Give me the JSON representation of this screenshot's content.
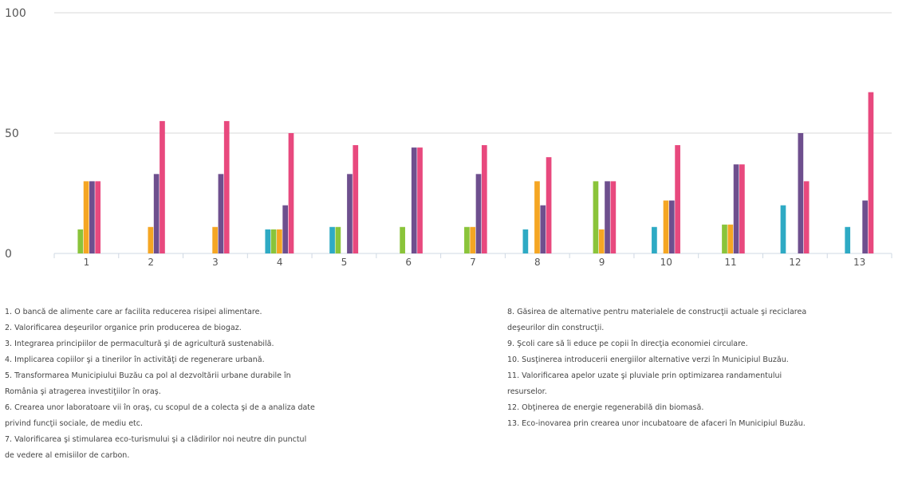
{
  "chart_data": {
    "type": "bar",
    "title": "",
    "xlabel": "",
    "ylabel": "",
    "ylim": [
      0,
      100
    ],
    "yticks": [
      "0",
      "50",
      "100"
    ],
    "grid": true,
    "categories": [
      "1",
      "2",
      "3",
      "4",
      "5",
      "6",
      "7",
      "8",
      "9",
      "10",
      "11",
      "12",
      "13"
    ],
    "series": [
      {
        "color": "#2eaac4",
        "values": [
          0,
          0,
          0,
          10,
          11,
          0,
          0,
          10,
          0,
          11,
          0,
          20,
          11
        ]
      },
      {
        "color": "#8ac43a",
        "values": [
          10,
          0,
          0,
          10,
          11,
          11,
          11,
          0,
          30,
          0,
          12,
          0,
          0
        ]
      },
      {
        "color": "#f5a623",
        "values": [
          30,
          11,
          11,
          10,
          0,
          0,
          11,
          30,
          10,
          22,
          12,
          0,
          0
        ]
      },
      {
        "color": "#6e4f8e",
        "values": [
          30,
          33,
          33,
          20,
          33,
          44,
          33,
          20,
          30,
          22,
          37,
          50,
          22
        ]
      },
      {
        "color": "#e8497e",
        "values": [
          30,
          55,
          55,
          50,
          45,
          44,
          45,
          40,
          30,
          45,
          37,
          30,
          67
        ]
      }
    ]
  },
  "legend": {
    "left": [
      "1. O bancă de alimente care ar facilita reducerea risipei alimentare.",
      "2. Valorificarea deşeurilor organice prin producerea de biogaz.",
      "3. Integrarea principiilor de permacultură şi de agricultură sustenabilă.",
      "4. Implicarea copiilor şi a tinerilor în activităţi de regenerare urbană.",
      "5. Transformarea Municipiului Buzău ca pol al dezvoltării urbane durabile în",
      "România şi atragerea investiţiilor în oraş.",
      "6. Crearea unor laboratoare vii în oraş, cu scopul de a colecta şi de a analiza date",
      "privind funcţii sociale, de mediu etc.",
      "7. Valorificarea şi stimularea eco-turismului şi a clădirilor noi neutre din punctul",
      "de vedere al emisiilor de carbon."
    ],
    "right": [
      "8. Găsirea de alternative pentru materialele de construcţii actuale şi reciclarea",
      "deşeurilor din construcţii.",
      "9. Şcoli care să îi educe pe copii în direcţia economiei circulare.",
      "10. Susţinerea introducerii energiilor alternative verzi în Municipiul Buzău.",
      "11. Valorificarea apelor uzate şi pluviale prin optimizarea randamentului",
      "resurselor.",
      "12. Obţinerea de energie regenerabilă din biomasă.",
      "13. Eco-inovarea prin crearea unor incubatoare de afaceri în Municipiul Buzău."
    ]
  }
}
